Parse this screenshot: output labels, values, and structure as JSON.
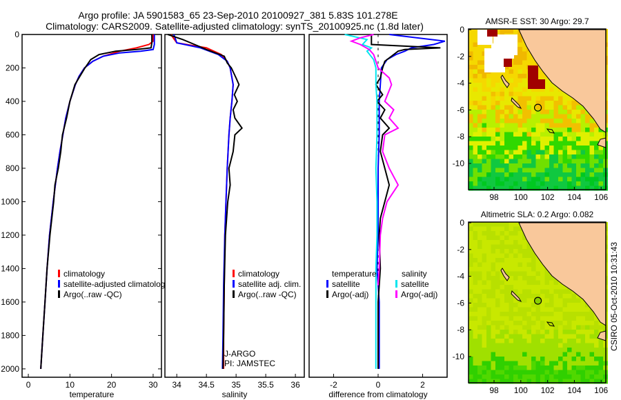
{
  "title": {
    "line1": "Argo profile: JA 5901583_65 23-Sep-2010 20100927_381 5.83S 101.278E",
    "line2": "Climatology: CARS2009. Satellite-adjusted climatology: synTS_20100925.nc (1.8d later)"
  },
  "side_label": "CSIRO 05-Oct-2010 10:31:43",
  "colors": {
    "climatology": "#ff0000",
    "satellite": "#0000ff",
    "argo": "#000000",
    "sal_satellite": "#00e5ee",
    "sal_argo": "#ff00ff",
    "land": "#f9c89b"
  },
  "chart_data": [
    {
      "type": "line",
      "xlabel": "temperature",
      "ylabel": "",
      "xlim": [
        -1.5,
        32
      ],
      "ylim": [
        2050,
        0
      ],
      "xticks": [
        "0",
        "10",
        "20",
        "30"
      ],
      "xtick_values": [
        0,
        10,
        20,
        30
      ],
      "yticks": [
        "0",
        "200",
        "400",
        "600",
        "800",
        "1000",
        "1200",
        "1400",
        "1600",
        "1800",
        "2000"
      ],
      "ytick_values": [
        0,
        200,
        400,
        600,
        800,
        1000,
        1200,
        1400,
        1600,
        1800,
        2000
      ],
      "legend": [
        "climatology",
        "satellite-adjusted climatology",
        "Argo(..raw -QC)"
      ],
      "series": [
        {
          "name": "climatology",
          "color": "climatology",
          "depth": [
            0,
            40,
            60,
            80,
            100,
            130,
            160,
            200,
            250,
            300,
            400,
            500,
            600,
            700,
            800,
            900,
            1000,
            1200,
            1400,
            1600,
            1800,
            2000
          ],
          "values": [
            30,
            30,
            29,
            26,
            22,
            18,
            15.5,
            13.5,
            12.2,
            11.3,
            10,
            9,
            8.3,
            7.6,
            7,
            6.5,
            6,
            5.1,
            4.5,
            4,
            3.5,
            3
          ]
        },
        {
          "name": "satellite-adjusted climatology",
          "color": "satellite",
          "depth": [
            0,
            60,
            90,
            100,
            110,
            130,
            160,
            200,
            250,
            300,
            400,
            500,
            600,
            700,
            800,
            900,
            1000,
            1200,
            1400,
            1600,
            1800,
            2000
          ],
          "values": [
            30.3,
            30.3,
            30,
            27,
            22,
            18,
            15.5,
            13.5,
            12.2,
            11.3,
            10,
            9,
            8.3,
            7.6,
            7,
            6.5,
            6,
            5.1,
            4.5,
            4,
            3.5,
            3
          ]
        },
        {
          "name": "Argo(..raw -QC)",
          "color": "argo",
          "depth": [
            0,
            50,
            80,
            90,
            100,
            120,
            150,
            200,
            250,
            300,
            400,
            500,
            600,
            700,
            800,
            900,
            1000,
            1200,
            1400,
            1600,
            1800,
            2000
          ],
          "values": [
            29.7,
            29.7,
            29.5,
            26,
            21,
            17,
            15,
            13.6,
            12.4,
            11.2,
            10,
            9.2,
            8.2,
            7.8,
            7.2,
            6.4,
            6.1,
            5.2,
            4.5,
            4,
            3.5,
            3
          ]
        }
      ]
    },
    {
      "type": "line",
      "xlabel": "salinity",
      "xlim": [
        33.8,
        36.15
      ],
      "ylim": [
        2050,
        0
      ],
      "xticks": [
        "34",
        "34.5",
        "35",
        "35.5",
        "36"
      ],
      "xtick_values": [
        34,
        34.5,
        35,
        35.5,
        36
      ],
      "legend": [
        "climatology",
        "satellite adj. clim.",
        "Argo(..raw -QC)"
      ],
      "annotations": [
        "J-ARGO",
        "PI: JAMSTEC"
      ],
      "series": [
        {
          "name": "climatology",
          "color": "climatology",
          "depth": [
            0,
            50,
            80,
            120,
            160,
            200,
            300,
            400,
            500,
            600,
            800,
            1000,
            1200,
            1500,
            1800,
            2000
          ],
          "values": [
            33.9,
            34.0,
            34.5,
            34.75,
            34.85,
            34.9,
            34.95,
            34.93,
            34.9,
            34.88,
            34.85,
            34.83,
            34.81,
            34.8,
            34.79,
            34.79
          ]
        },
        {
          "name": "satellite adj. clim.",
          "color": "satellite",
          "depth": [
            0,
            50,
            80,
            120,
            160,
            200,
            300,
            400,
            500,
            600,
            800,
            1000,
            1200,
            1500,
            1800,
            2000
          ],
          "values": [
            33.95,
            34.0,
            34.4,
            34.7,
            34.85,
            34.9,
            34.95,
            34.93,
            34.9,
            34.88,
            34.85,
            34.83,
            34.81,
            34.79,
            34.78,
            34.77
          ]
        },
        {
          "name": "Argo(..raw -QC)",
          "color": "argo",
          "depth": [
            0,
            30,
            60,
            90,
            130,
            170,
            200,
            260,
            300,
            360,
            400,
            450,
            500,
            560,
            600,
            700,
            800,
            900,
            1000,
            1100,
            1200,
            1500,
            1800,
            2000
          ],
          "values": [
            33.85,
            34.1,
            34.3,
            34.5,
            34.8,
            34.85,
            34.92,
            35.0,
            35.05,
            34.97,
            35.02,
            34.95,
            34.98,
            35.1,
            34.98,
            34.95,
            34.88,
            34.9,
            34.86,
            34.84,
            34.82,
            34.8,
            34.79,
            34.78
          ]
        }
      ]
    },
    {
      "type": "line",
      "xlabel": "difference from climatology",
      "xlim": [
        -3.1,
        3.1
      ],
      "ylim": [
        2050,
        0
      ],
      "xticks": [
        "-2",
        "0",
        "2"
      ],
      "xtick_values": [
        -2,
        0,
        2
      ],
      "legend_titles": [
        "temperature",
        "salinity"
      ],
      "legend": [
        "satellite",
        "Argo(-adj)",
        "satellite",
        "Argo(-adj)"
      ],
      "series": [
        {
          "name": "temperature satellite",
          "color": "satellite",
          "depth": [
            0,
            40,
            60,
            80,
            100,
            120,
            150,
            200,
            300,
            400,
            600,
            800,
            1000,
            1200,
            1400,
            1600,
            1800,
            2000
          ],
          "values": [
            0.5,
            3,
            2.5,
            1.5,
            1.2,
            0.8,
            0.4,
            0.15,
            0.1,
            0.05,
            0.05,
            0,
            0,
            0,
            -0.05,
            0.05,
            0.05,
            0.05
          ]
        },
        {
          "name": "temperature Argo(-adj)",
          "color": "argo",
          "depth": [
            0,
            60,
            80,
            90,
            100,
            130,
            160,
            200,
            260,
            300,
            360,
            400,
            450,
            500,
            560,
            600,
            700,
            800,
            900,
            1000,
            1100,
            1200,
            1400,
            1600,
            1800,
            2000
          ],
          "values": [
            -0.3,
            -0.3,
            2.8,
            1.2,
            0.9,
            0.6,
            0.3,
            0.2,
            0.1,
            -0.1,
            0.2,
            -0.05,
            0.3,
            0.1,
            0.5,
            0.2,
            0.1,
            0.3,
            0.5,
            0.3,
            0.1,
            0.05,
            0.1,
            0,
            0,
            0
          ]
        },
        {
          "name": "salinity satellite",
          "color": "sal_satellite",
          "depth": [
            0,
            30,
            60,
            80,
            100,
            150,
            200,
            300,
            400,
            600,
            800,
            1000,
            1200,
            1400,
            1600,
            1800,
            2000
          ],
          "values": [
            -1.5,
            -0.5,
            -0.7,
            -0.3,
            -0.5,
            -0.2,
            -0.1,
            -0.1,
            -0.05,
            -0.05,
            -0.1,
            -0.05,
            -0.05,
            -0.1,
            -0.1,
            -0.1,
            -0.1
          ]
        },
        {
          "name": "salinity Argo(-adj)",
          "color": "sal_argo",
          "depth": [
            0,
            20,
            40,
            60,
            90,
            120,
            160,
            200,
            260,
            300,
            400,
            450,
            500,
            560,
            600,
            700,
            800,
            900,
            1000,
            1100,
            1200,
            1400,
            1500
          ],
          "values": [
            -0.2,
            -0.8,
            -1.2,
            -0.8,
            -0.4,
            -0.2,
            -0.1,
            0,
            0.5,
            0.6,
            0.3,
            0.7,
            0.5,
            0.9,
            0.3,
            0.2,
            0.5,
            0.9,
            0.4,
            0.2,
            0.1,
            0.05,
            0
          ]
        }
      ]
    },
    {
      "type": "heatmap",
      "title": "AMSR-E SST: 30 Argo: 29.7",
      "xticks": [
        "98",
        "100",
        "102",
        "104",
        "106"
      ],
      "xtick_values": [
        98,
        100,
        102,
        104,
        106
      ],
      "yticks": [
        "0",
        "-2",
        "-4",
        "-6",
        "-8",
        "-10"
      ],
      "ytick_values": [
        0,
        -2,
        -4,
        -6,
        -8,
        -10
      ],
      "argo_position": [
        101.278,
        -5.83
      ]
    },
    {
      "type": "heatmap",
      "title": "Altimetric SLA: 0.2 Argo: 0.082",
      "xticks": [
        "98",
        "100",
        "102",
        "104",
        "106"
      ],
      "xtick_values": [
        98,
        100,
        102,
        104,
        106
      ],
      "yticks": [
        "0",
        "-2",
        "-4",
        "-6",
        "-8",
        "-10"
      ],
      "ytick_values": [
        0,
        -2,
        -4,
        -6,
        -8,
        -10
      ],
      "argo_position": [
        101.278,
        -5.83
      ]
    }
  ]
}
